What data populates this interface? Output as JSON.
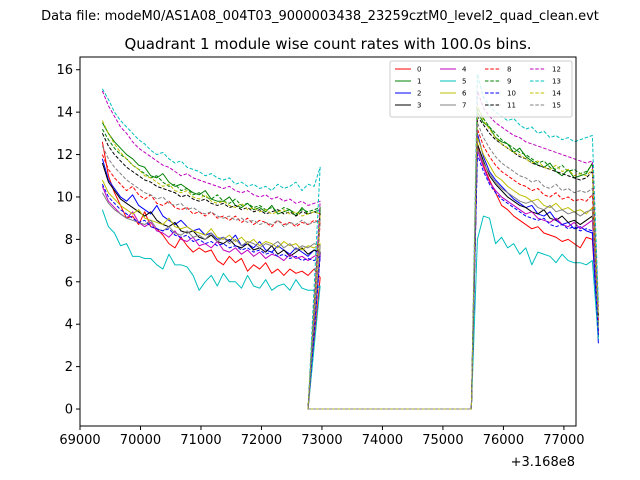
{
  "chart_data": {
    "type": "line",
    "suptitle": "Data file: modeM0/AS1A08_004T03_9000003438_23259cztM0_level2_quad_clean.evt",
    "title": "Quadrant 1 module wise count rates with 100.0s bins.",
    "xlabel": "",
    "ylabel": "",
    "x_offset_text": "+3.168e8",
    "xlim": [
      69000,
      77200
    ],
    "ylim": [
      -0.8,
      16.6
    ],
    "x_ticks": [
      69000,
      70000,
      71000,
      72000,
      73000,
      74000,
      75000,
      76000,
      77000
    ],
    "y_ticks": [
      0,
      2,
      4,
      6,
      8,
      10,
      12,
      14,
      16
    ],
    "x_tick_labels": [
      "69000",
      "70000",
      "71000",
      "72000",
      "73000",
      "74000",
      "75000",
      "76000",
      "77000"
    ],
    "y_tick_labels": [
      "0",
      "2",
      "4",
      "6",
      "8",
      "10",
      "12",
      "14",
      "16"
    ],
    "segment_start_x": 69370,
    "bin_width": 100,
    "gap_zero_range": [
      72770,
      75470
    ],
    "legend_position": "top-right",
    "series": [
      {
        "name": "0",
        "color": "#ff0000",
        "dash": "solid",
        "seg1": [
          12.6,
          11.0,
          10.2,
          9.6,
          9.0,
          9.1,
          8.7,
          9.3,
          8.6,
          8.5,
          8.2,
          7.8,
          7.6,
          8.1,
          7.7,
          7.4,
          7.6,
          7.4,
          7.5,
          7.0,
          6.8,
          7.2,
          6.9,
          7.1,
          6.5,
          6.8,
          6.6,
          6.9,
          6.4,
          6.6,
          6.3,
          6.6,
          6.4,
          6.5,
          6.3,
          6.6,
          6.2
        ],
        "seg2": [
          12.4,
          11.5,
          10.8,
          10.2,
          9.6,
          9.4,
          9.1,
          8.9,
          8.7,
          8.5,
          8.6,
          8.3,
          8.2,
          8.1,
          7.9,
          8.0,
          7.8,
          7.6,
          8.1,
          8.0,
          3.6
        ]
      },
      {
        "name": "1",
        "color": "#008000",
        "dash": "solid",
        "seg1": [
          13.5,
          13.0,
          12.6,
          12.3,
          12.0,
          11.8,
          11.5,
          11.4,
          11.0,
          10.9,
          11.1,
          10.7,
          10.5,
          10.6,
          10.4,
          10.2,
          10.1,
          10.3,
          9.9,
          9.8,
          9.8,
          10.0,
          9.6,
          9.5,
          9.7,
          9.4,
          9.5,
          9.3,
          9.6,
          9.2,
          9.3,
          9.4,
          9.1,
          9.5,
          9.2,
          9.3,
          9.4
        ],
        "seg2": [
          14.0,
          13.5,
          13.3,
          12.8,
          12.6,
          12.5,
          12.1,
          12.3,
          11.9,
          11.7,
          11.5,
          11.4,
          11.6,
          11.2,
          11.0,
          11.3,
          10.9,
          11.0,
          11.1,
          11.6,
          4.0
        ]
      },
      {
        "name": "2",
        "color": "#0000ff",
        "dash": "solid",
        "seg1": [
          11.8,
          10.8,
          10.4,
          10.0,
          9.8,
          10.1,
          9.6,
          9.4,
          9.2,
          9.6,
          9.1,
          8.9,
          8.7,
          8.9,
          8.6,
          8.4,
          8.5,
          8.2,
          8.3,
          8.0,
          8.1,
          7.9,
          8.2,
          7.7,
          7.8,
          7.6,
          7.9,
          7.5,
          7.4,
          7.7,
          7.5,
          7.3,
          7.6,
          7.4,
          7.2,
          7.5,
          7.3
        ],
        "seg2": [
          13.0,
          11.9,
          11.2,
          10.8,
          10.5,
          10.2,
          9.9,
          9.7,
          9.5,
          9.6,
          9.2,
          9.1,
          9.3,
          8.9,
          8.7,
          8.8,
          8.5,
          8.6,
          8.4,
          8.3,
          3.1
        ]
      },
      {
        "name": "3",
        "color": "#000000",
        "dash": "solid",
        "seg1": [
          11.6,
          10.7,
          10.3,
          9.9,
          9.7,
          9.5,
          9.3,
          9.1,
          9.3,
          8.9,
          8.7,
          8.6,
          8.8,
          8.4,
          8.3,
          8.4,
          8.1,
          8.0,
          8.2,
          7.9,
          7.8,
          8.0,
          7.7,
          7.6,
          7.8,
          7.5,
          7.6,
          7.4,
          7.7,
          7.3,
          7.5,
          7.2,
          7.4,
          7.6,
          7.3,
          7.5,
          7.4
        ],
        "seg2": [
          12.5,
          11.7,
          11.0,
          10.6,
          10.3,
          10.0,
          9.8,
          9.6,
          9.5,
          9.3,
          9.2,
          9.4,
          9.0,
          8.9,
          9.1,
          8.8,
          8.9,
          8.7,
          8.9,
          9.1,
          3.4
        ]
      },
      {
        "name": "4",
        "color": "#bf00bf",
        "dash": "solid",
        "seg1": [
          10.5,
          9.8,
          9.5,
          9.2,
          9.0,
          9.3,
          8.8,
          8.6,
          8.8,
          8.4,
          8.3,
          8.1,
          8.4,
          8.0,
          7.9,
          8.1,
          7.7,
          7.8,
          7.6,
          7.9,
          7.5,
          7.4,
          7.6,
          7.3,
          7.5,
          7.2,
          7.4,
          7.1,
          7.3,
          7.2,
          7.0,
          7.3,
          7.1,
          7.2,
          7.0,
          7.2,
          7.3
        ],
        "seg2": [
          12.2,
          11.4,
          10.7,
          10.3,
          10.0,
          9.8,
          9.6,
          9.4,
          9.2,
          9.3,
          9.0,
          8.9,
          8.8,
          9.0,
          8.7,
          8.6,
          8.8,
          8.5,
          8.7,
          8.9,
          3.6
        ]
      },
      {
        "name": "5",
        "color": "#00bfbf",
        "dash": "solid",
        "seg1": [
          9.4,
          8.6,
          8.3,
          7.7,
          7.8,
          7.2,
          7.2,
          7.1,
          7.1,
          6.8,
          6.6,
          7.3,
          6.8,
          6.8,
          6.7,
          6.3,
          5.6,
          6.0,
          6.3,
          5.8,
          6.4,
          6.0,
          6.0,
          5.7,
          6.3,
          5.8,
          5.7,
          6.1,
          5.6,
          5.8,
          5.9,
          5.6,
          6.1,
          5.7,
          5.6,
          5.6,
          5.8
        ],
        "seg2": [
          8.0,
          9.1,
          9.0,
          7.8,
          8.1,
          7.6,
          7.8,
          7.3,
          7.6,
          6.8,
          7.4,
          7.3,
          7.2,
          6.9,
          7.3,
          7.0,
          6.9,
          6.9,
          6.8,
          7.0,
          3.3
        ]
      },
      {
        "name": "6",
        "color": "#bfbf00",
        "dash": "solid",
        "seg1": [
          10.8,
          10.2,
          9.9,
          9.6,
          9.4,
          9.2,
          9.4,
          9.0,
          8.9,
          8.8,
          8.7,
          9.0,
          8.6,
          8.5,
          8.6,
          8.4,
          8.3,
          8.2,
          8.5,
          8.1,
          8.0,
          8.2,
          7.9,
          8.1,
          7.8,
          8.0,
          7.7,
          7.9,
          7.8,
          7.6,
          7.9,
          7.7,
          7.8,
          7.5,
          7.7,
          7.6,
          7.8
        ],
        "seg2": [
          12.8,
          12.0,
          11.5,
          11.0,
          10.8,
          10.5,
          10.3,
          10.1,
          10.0,
          9.8,
          9.9,
          9.6,
          9.5,
          9.7,
          9.4,
          9.5,
          9.3,
          9.4,
          9.2,
          9.5,
          3.9
        ]
      },
      {
        "name": "7",
        "color": "#808080",
        "dash": "solid",
        "seg1": [
          10.2,
          9.7,
          9.4,
          9.2,
          9.0,
          8.9,
          8.8,
          8.7,
          8.9,
          8.5,
          8.4,
          8.6,
          8.3,
          8.2,
          8.4,
          8.1,
          8.2,
          8.0,
          8.3,
          7.9,
          8.1,
          7.8,
          8.0,
          7.7,
          7.9,
          7.8,
          7.6,
          7.8,
          7.7,
          7.9,
          7.6,
          7.8,
          7.5,
          7.7,
          7.6,
          7.8,
          7.7
        ],
        "seg2": [
          12.3,
          11.6,
          11.1,
          10.7,
          10.4,
          10.2,
          10.0,
          9.8,
          9.7,
          9.8,
          9.5,
          9.4,
          9.6,
          9.3,
          9.4,
          9.2,
          9.3,
          9.1,
          9.3,
          9.4,
          3.7
        ]
      },
      {
        "name": "8",
        "color": "#ff0000",
        "dash": "dashed",
        "seg1": [
          12.0,
          11.3,
          10.9,
          10.6,
          10.3,
          10.5,
          10.1,
          9.9,
          10.1,
          9.7,
          9.6,
          9.8,
          9.5,
          9.4,
          9.5,
          9.2,
          9.3,
          9.1,
          9.3,
          9.0,
          9.1,
          8.9,
          9.1,
          8.8,
          9.0,
          8.7,
          8.9,
          8.8,
          8.6,
          8.9,
          8.7,
          8.8,
          8.6,
          8.8,
          8.7,
          8.9,
          8.8
        ],
        "seg2": [
          13.2,
          12.4,
          11.9,
          11.5,
          11.2,
          11.0,
          10.8,
          10.6,
          10.5,
          10.3,
          10.4,
          10.1,
          10.0,
          10.2,
          9.9,
          10.0,
          9.8,
          9.9,
          9.8,
          10.1,
          4.2
        ]
      },
      {
        "name": "9",
        "color": "#008000",
        "dash": "dashed",
        "seg1": [
          13.2,
          12.7,
          12.3,
          12.0,
          11.8,
          11.5,
          11.3,
          11.1,
          10.9,
          11.0,
          10.7,
          10.5,
          10.6,
          10.3,
          10.4,
          10.1,
          10.2,
          10.0,
          9.9,
          10.1,
          9.8,
          9.7,
          9.9,
          9.6,
          9.7,
          9.5,
          9.6,
          9.4,
          9.5,
          9.3,
          9.5,
          9.4,
          9.2,
          9.4,
          9.3,
          9.4,
          9.5
        ],
        "seg2": [
          14.2,
          13.7,
          13.3,
          13.0,
          12.7,
          12.5,
          12.3,
          12.1,
          12.0,
          11.8,
          11.6,
          11.7,
          11.4,
          11.3,
          11.5,
          11.2,
          11.3,
          11.1,
          11.2,
          11.5,
          4.3
        ]
      },
      {
        "name": "10",
        "color": "#0000ff",
        "dash": "dashed",
        "seg1": [
          10.6,
          10.0,
          9.7,
          9.4,
          9.2,
          9.0,
          8.8,
          8.9,
          8.6,
          8.5,
          8.4,
          8.5,
          8.2,
          8.1,
          8.2,
          7.9,
          8.0,
          7.8,
          7.9,
          7.7,
          7.8,
          7.6,
          7.7,
          7.5,
          7.6,
          7.4,
          7.5,
          7.3,
          7.4,
          7.2,
          7.3,
          7.1,
          7.2,
          7.0,
          7.1,
          7.0,
          7.2
        ],
        "seg2": [
          12.0,
          11.2,
          10.6,
          10.2,
          9.9,
          9.7,
          9.5,
          9.3,
          9.1,
          9.0,
          8.9,
          9.0,
          8.7,
          8.6,
          8.7,
          8.5,
          8.6,
          8.4,
          8.5,
          8.4,
          3.5
        ]
      },
      {
        "name": "11",
        "color": "#000000",
        "dash": "dashed",
        "seg1": [
          13.0,
          12.4,
          12.0,
          11.7,
          11.4,
          11.2,
          11.0,
          10.8,
          10.7,
          10.5,
          10.4,
          10.3,
          10.2,
          10.0,
          10.1,
          9.9,
          9.8,
          9.9,
          9.7,
          9.6,
          9.7,
          9.5,
          9.6,
          9.4,
          9.5,
          9.3,
          9.4,
          9.2,
          9.3,
          9.4,
          9.2,
          9.3,
          9.1,
          9.3,
          9.2,
          9.3,
          9.2
        ],
        "seg2": [
          13.8,
          13.4,
          13.0,
          12.7,
          12.5,
          12.3,
          12.1,
          11.9,
          11.8,
          11.6,
          11.5,
          11.4,
          11.3,
          11.2,
          11.1,
          11.0,
          10.9,
          10.8,
          10.9,
          11.2,
          4.4
        ]
      },
      {
        "name": "12",
        "color": "#bf00bf",
        "dash": "dashed",
        "seg1": [
          15.0,
          14.3,
          13.8,
          13.3,
          13.0,
          12.6,
          12.3,
          12.1,
          11.9,
          11.7,
          11.5,
          11.4,
          11.2,
          11.0,
          11.1,
          10.9,
          10.8,
          10.7,
          10.6,
          10.5,
          10.4,
          10.5,
          10.3,
          10.2,
          10.3,
          10.1,
          10.0,
          10.1,
          9.9,
          10.0,
          9.8,
          9.9,
          9.7,
          9.8,
          9.6,
          9.7,
          9.8
        ],
        "seg2": [
          15.0,
          14.2,
          13.8,
          13.5,
          13.3,
          13.1,
          12.9,
          12.8,
          12.6,
          12.5,
          12.4,
          12.3,
          12.2,
          12.1,
          12.0,
          11.9,
          11.8,
          11.7,
          11.6,
          11.7,
          4.8
        ]
      },
      {
        "name": "13",
        "color": "#00bfbf",
        "dash": "dashed",
        "seg1": [
          15.1,
          14.6,
          14.0,
          13.6,
          13.3,
          13.0,
          12.7,
          12.5,
          12.2,
          12.0,
          12.1,
          11.8,
          11.6,
          11.7,
          11.4,
          11.3,
          11.2,
          11.0,
          11.1,
          10.9,
          10.8,
          10.9,
          10.6,
          10.7,
          10.5,
          10.6,
          10.4,
          10.5,
          10.3,
          10.6,
          10.4,
          10.5,
          10.7,
          10.3,
          10.6,
          10.5,
          11.4
        ],
        "seg2": [
          15.8,
          14.7,
          14.3,
          14.0,
          13.8,
          13.6,
          13.7,
          13.4,
          13.2,
          13.3,
          13.0,
          13.1,
          12.8,
          12.9,
          12.7,
          12.8,
          12.6,
          12.7,
          12.8,
          12.9,
          5.0
        ]
      },
      {
        "name": "14",
        "color": "#bfbf00",
        "dash": "dashed",
        "seg1": [
          13.6,
          13.0,
          12.5,
          12.1,
          11.8,
          11.5,
          11.3,
          11.0,
          10.9,
          10.7,
          10.5,
          10.6,
          10.3,
          10.2,
          10.3,
          10.0,
          9.9,
          10.1,
          9.8,
          9.7,
          9.8,
          9.6,
          9.5,
          9.7,
          9.4,
          9.5,
          9.3,
          9.4,
          9.2,
          9.3,
          9.4,
          9.2,
          9.3,
          9.1,
          9.2,
          9.3,
          9.2
        ],
        "seg2": [
          14.3,
          13.6,
          13.2,
          12.8,
          12.5,
          12.3,
          12.1,
          12.0,
          11.8,
          11.6,
          11.7,
          11.4,
          11.3,
          11.5,
          11.2,
          11.3,
          11.0,
          11.1,
          11.0,
          11.3,
          4.5
        ]
      },
      {
        "name": "15",
        "color": "#808080",
        "dash": "dashed",
        "seg1": [
          12.4,
          11.8,
          11.4,
          11.1,
          10.8,
          10.6,
          10.4,
          10.2,
          10.1,
          9.9,
          10.0,
          9.7,
          9.6,
          9.7,
          9.4,
          9.5,
          9.3,
          9.2,
          9.3,
          9.1,
          9.0,
          9.1,
          8.9,
          9.0,
          8.8,
          8.9,
          8.7,
          8.8,
          8.7,
          8.9,
          8.6,
          8.8,
          8.7,
          8.9,
          8.7,
          8.8,
          8.9
        ],
        "seg2": [
          13.5,
          12.8,
          12.3,
          11.9,
          11.6,
          11.4,
          11.2,
          11.0,
          10.9,
          10.7,
          10.8,
          10.5,
          10.4,
          10.6,
          10.3,
          10.4,
          10.2,
          10.3,
          10.2,
          10.4,
          4.1
        ]
      }
    ]
  }
}
